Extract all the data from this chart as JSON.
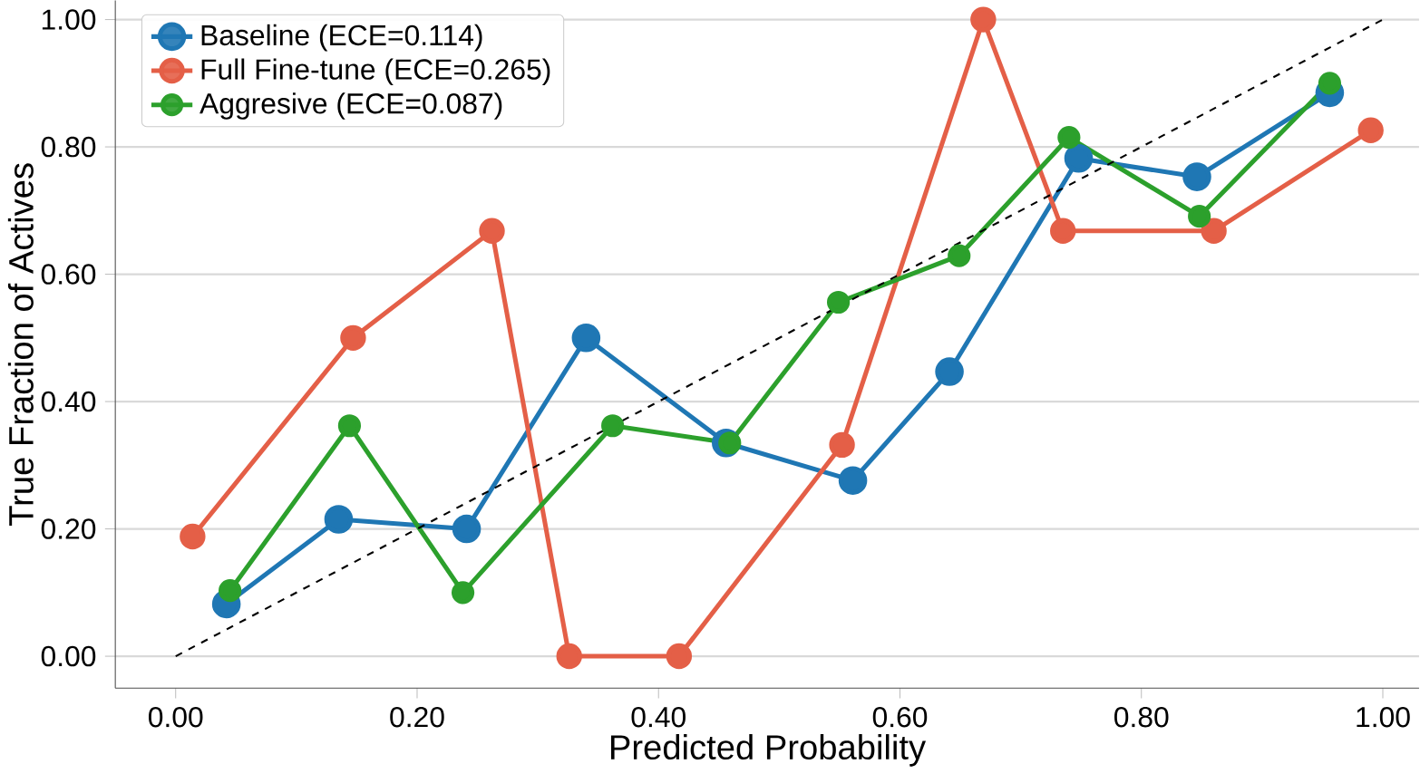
{
  "chart_data": {
    "type": "line",
    "xlabel": "Predicted Probability",
    "ylabel": "True Fraction of Actives",
    "xlim": [
      -0.05,
      1.03
    ],
    "ylim": [
      -0.05,
      1.03
    ],
    "xticks": [
      {
        "value": 0,
        "label": "0.00"
      },
      {
        "value": 0.2,
        "label": "0.20"
      },
      {
        "value": 0.4,
        "label": "0.40"
      },
      {
        "value": 0.6,
        "label": "0.60"
      },
      {
        "value": 0.8,
        "label": "0.80"
      },
      {
        "value": 1,
        "label": "1.00"
      }
    ],
    "yticks": [
      {
        "value": 0,
        "label": "0.00"
      },
      {
        "value": 0.2,
        "label": "0.20"
      },
      {
        "value": 0.4,
        "label": "0.40"
      },
      {
        "value": 0.6,
        "label": "0.60"
      },
      {
        "value": 0.8,
        "label": "0.80"
      },
      {
        "value": 1,
        "label": "1.00"
      }
    ],
    "grid": "y",
    "legend": "top left",
    "marker": "circle",
    "series": [
      {
        "name": "Baseline (ECE=0.114)",
        "color": "#1f77b4",
        "x": [
          0.042,
          0.135,
          0.241,
          0.34,
          0.456,
          0.561,
          0.641,
          0.748,
          0.846,
          0.956
        ],
        "values": [
          0.082,
          0.215,
          0.2,
          0.5,
          0.335,
          0.276,
          0.447,
          0.782,
          0.753,
          0.885
        ]
      },
      {
        "name": "Full Fine-tune (ECE=0.265)",
        "color": "#e45f47",
        "x": [
          0.014,
          0.147,
          0.262,
          0.326,
          0.417,
          0.552,
          0.669,
          0.735,
          0.86,
          0.99
        ],
        "values": [
          0.188,
          0.5,
          0.668,
          0,
          0,
          0.332,
          1.0,
          0.668,
          0.668,
          0.826
        ]
      },
      {
        "name": "Aggresive (ECE=0.087)",
        "color": "#2ca02c",
        "x": [
          0.045,
          0.144,
          0.238,
          0.362,
          0.459,
          0.549,
          0.649,
          0.74,
          0.848,
          0.956
        ],
        "values": [
          0.103,
          0.362,
          0.1,
          0.362,
          0.335,
          0.556,
          0.629,
          0.815,
          0.691,
          0.9
        ]
      },
      {
        "type": "line",
        "color": "#000000",
        "line_style": "dashed",
        "marker": "none",
        "x": [
          0,
          1
        ],
        "values": [
          0,
          1
        ]
      }
    ]
  }
}
